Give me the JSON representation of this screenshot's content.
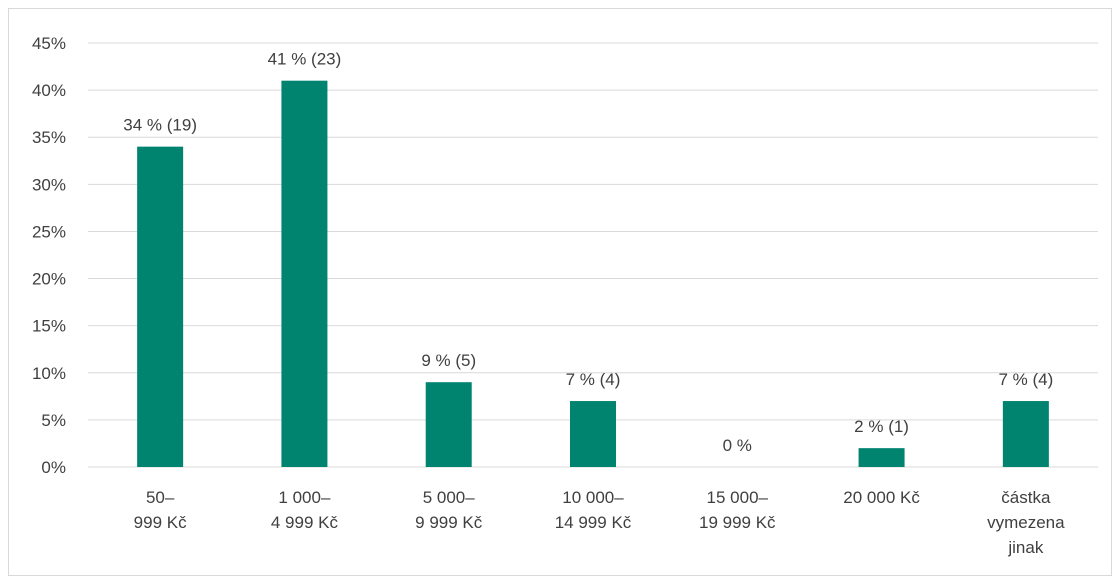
{
  "chart_data": {
    "type": "bar",
    "categories": [
      [
        "50–",
        "999 Kč"
      ],
      [
        "1 000–",
        "4 999 Kč"
      ],
      [
        "5 000–",
        "9 999 Kč"
      ],
      [
        "10 000–",
        "14 999 Kč"
      ],
      [
        "15 000–",
        "19 999 Kč"
      ],
      [
        "20 000 Kč"
      ],
      [
        "částka",
        "vymezena",
        "jinak"
      ]
    ],
    "values": [
      34,
      41,
      9,
      7,
      0,
      2,
      7
    ],
    "data_labels": [
      "34 % (19)",
      "41 % (23)",
      "9 % (5)",
      "7 % (4)",
      "0 %",
      "2 % (1)",
      "7 % (4)"
    ],
    "y_ticks": [
      "0%",
      "5%",
      "10%",
      "15%",
      "20%",
      "25%",
      "30%",
      "35%",
      "40%",
      "45%"
    ],
    "ylim": [
      0,
      45
    ],
    "title": "",
    "xlabel": "",
    "ylabel": "",
    "grid": true,
    "legend": "none",
    "colors": {
      "bar": "#00836f",
      "grid": "#d9d9d9",
      "text": "#404040"
    }
  }
}
